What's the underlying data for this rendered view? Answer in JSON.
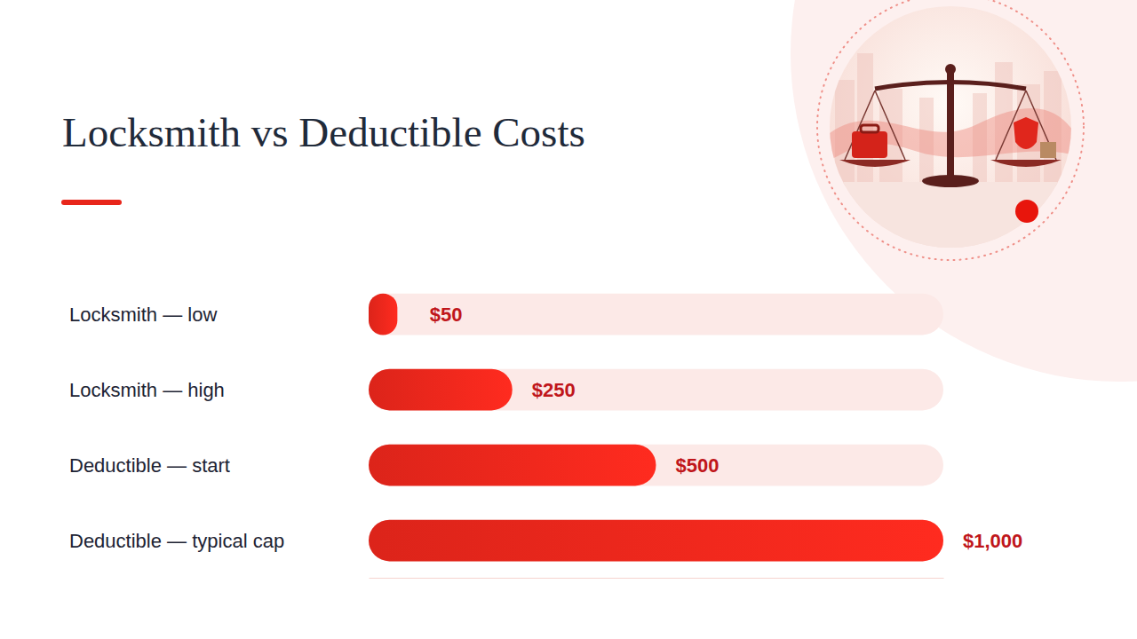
{
  "chart_data": {
    "type": "bar",
    "title": "Locksmith vs Deductible Costs",
    "orientation": "horizontal",
    "categories": [
      "Locksmith — low",
      "Locksmith — high",
      "Deductible — start",
      "Deductible — typical cap"
    ],
    "values": [
      50,
      250,
      500,
      1000
    ],
    "value_labels": [
      "$50",
      "$250",
      "$500",
      "$1,000"
    ],
    "data_labels": true,
    "color": "#e8261b",
    "xlim": [
      0,
      1000
    ],
    "tick_labels": false,
    "grid": false
  }
}
